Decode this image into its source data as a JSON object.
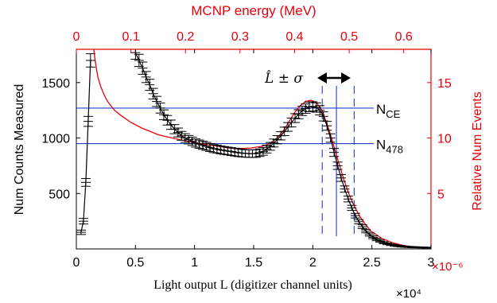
{
  "chart_data": {
    "type": "scatter",
    "title": "",
    "xlabel": "Light output L (digitizer channel units)",
    "x_multiplier": "×10⁴",
    "ylabel_left": "Num Counts Measured",
    "ylabel_right": "Relative Num Events",
    "right_multiplier": "×10⁻⁶",
    "top_xlabel": "MCNP energy (MeV)",
    "xlim": [
      0,
      30000
    ],
    "ylim_left": [
      0,
      1800
    ],
    "top_xlim": [
      0,
      0.65
    ],
    "right_ylim": [
      0,
      18
    ],
    "x_ticks": [
      0,
      5000,
      10000,
      15000,
      20000,
      25000,
      30000
    ],
    "x_tick_labels": [
      "0",
      "0.5",
      "1",
      "1.5",
      "2",
      "2.5",
      "3"
    ],
    "y_ticks": [
      500,
      1000,
      1500
    ],
    "y_tick_labels": [
      "500",
      "1000",
      "1500"
    ],
    "top_ticks": [
      0,
      0.1,
      0.2,
      0.3,
      0.4,
      0.5,
      0.6
    ],
    "top_tick_labels": [
      "0",
      "0.1",
      "0.2",
      "0.3",
      "0.4",
      "0.5",
      "0.6"
    ],
    "right_ticks": [
      5,
      10,
      15
    ],
    "right_tick_labels": [
      "5",
      "10",
      "15"
    ],
    "colors": {
      "measured": "#000000",
      "mcnp": "#e8000b",
      "markers": "#1f3fd0"
    },
    "measured": {
      "name": "",
      "x": [
        400,
        600,
        800,
        1000,
        1200,
        5000,
        5300,
        5600,
        5900,
        6200,
        6500,
        6800,
        7100,
        7400,
        7700,
        8000,
        8300,
        8600,
        8900,
        9200,
        9500,
        9800,
        10100,
        10400,
        10700,
        11000,
        11300,
        11600,
        11900,
        12200,
        12500,
        12800,
        13100,
        13400,
        13700,
        14000,
        14300,
        14600,
        14900,
        15200,
        15500,
        15800,
        16100,
        16400,
        16700,
        17000,
        17300,
        17600,
        17900,
        18200,
        18500,
        18800,
        19100,
        19400,
        19700,
        20000,
        20300,
        20600,
        20900,
        21200,
        21500,
        21800,
        22100,
        22400,
        22700,
        23000,
        23300,
        23600,
        23900,
        24200,
        24500,
        24800,
        25100,
        25400,
        25700,
        26000,
        26300,
        26600,
        26900,
        27200,
        27500,
        27800,
        28100,
        28400,
        28700,
        29000,
        29300,
        29600
      ],
      "y": [
        150,
        250,
        600,
        1150,
        1700,
        1770,
        1700,
        1630,
        1550,
        1480,
        1400,
        1330,
        1270,
        1210,
        1160,
        1120,
        1080,
        1050,
        1020,
        1000,
        985,
        970,
        955,
        945,
        935,
        925,
        915,
        905,
        900,
        893,
        888,
        883,
        878,
        873,
        868,
        864,
        861,
        860,
        859,
        860,
        868,
        880,
        900,
        925,
        955,
        985,
        1020,
        1060,
        1100,
        1140,
        1180,
        1215,
        1245,
        1265,
        1280,
        1285,
        1275,
        1250,
        1195,
        1110,
        1000,
        870,
        750,
        640,
        540,
        450,
        370,
        300,
        245,
        200,
        160,
        130,
        105,
        85,
        70,
        56,
        46,
        38,
        32,
        27,
        23,
        20,
        18,
        16,
        15,
        14,
        13,
        12
      ],
      "err": [
        20,
        25,
        35,
        45,
        60,
        60,
        55,
        55,
        50,
        50,
        48,
        46,
        45,
        44,
        43,
        42,
        41,
        40,
        40,
        39,
        38,
        38,
        37,
        37,
        37,
        36,
        36,
        36,
        35,
        35,
        35,
        35,
        35,
        35,
        35,
        34,
        34,
        34,
        34,
        34,
        34,
        35,
        35,
        35,
        36,
        37,
        37,
        38,
        39,
        40,
        40,
        41,
        42,
        42,
        42,
        42,
        42,
        42,
        41,
        40,
        38,
        36,
        33,
        31,
        28,
        26,
        23,
        21,
        19,
        17,
        15,
        14,
        12,
        11,
        10,
        9,
        8,
        7,
        7,
        6,
        6,
        5,
        5,
        5,
        5,
        4,
        4,
        4
      ]
    },
    "mcnp": {
      "name": "",
      "x": [
        0.032,
        0.034,
        0.036,
        0.038,
        0.04,
        0.045,
        0.05,
        0.055,
        0.06,
        0.07,
        0.08,
        0.1,
        0.12,
        0.15,
        0.18,
        0.2,
        0.24,
        0.28,
        0.3,
        0.32,
        0.34,
        0.35,
        0.36,
        0.37,
        0.38,
        0.39,
        0.4,
        0.41,
        0.42,
        0.43,
        0.44,
        0.45,
        0.46,
        0.47,
        0.48,
        0.49,
        0.5,
        0.51,
        0.52,
        0.53,
        0.54,
        0.56,
        0.58,
        0.6,
        0.62,
        0.64,
        0.65
      ],
      "y": [
        18.2,
        17.2,
        16.5,
        15.9,
        15.4,
        14.6,
        14.0,
        13.5,
        13.1,
        12.5,
        12.1,
        11.4,
        10.9,
        10.3,
        9.95,
        9.75,
        9.4,
        9.1,
        9.05,
        9.1,
        9.25,
        9.4,
        9.7,
        10.1,
        10.7,
        11.5,
        12.3,
        12.9,
        13.3,
        13.4,
        13.2,
        12.5,
        11.2,
        9.6,
        7.9,
        6.3,
        4.9,
        3.8,
        2.9,
        2.2,
        1.6,
        0.95,
        0.55,
        0.3,
        0.18,
        0.12,
        0.1
      ]
    },
    "hlines": [
      {
        "label": "N",
        "sub": "CE",
        "y": 1270
      },
      {
        "label": "N",
        "sub": "478",
        "y": 950
      }
    ],
    "vlines": {
      "center": 22000,
      "minus": 20800,
      "plus": 23500
    },
    "annotation": "L̂ ± σ"
  }
}
